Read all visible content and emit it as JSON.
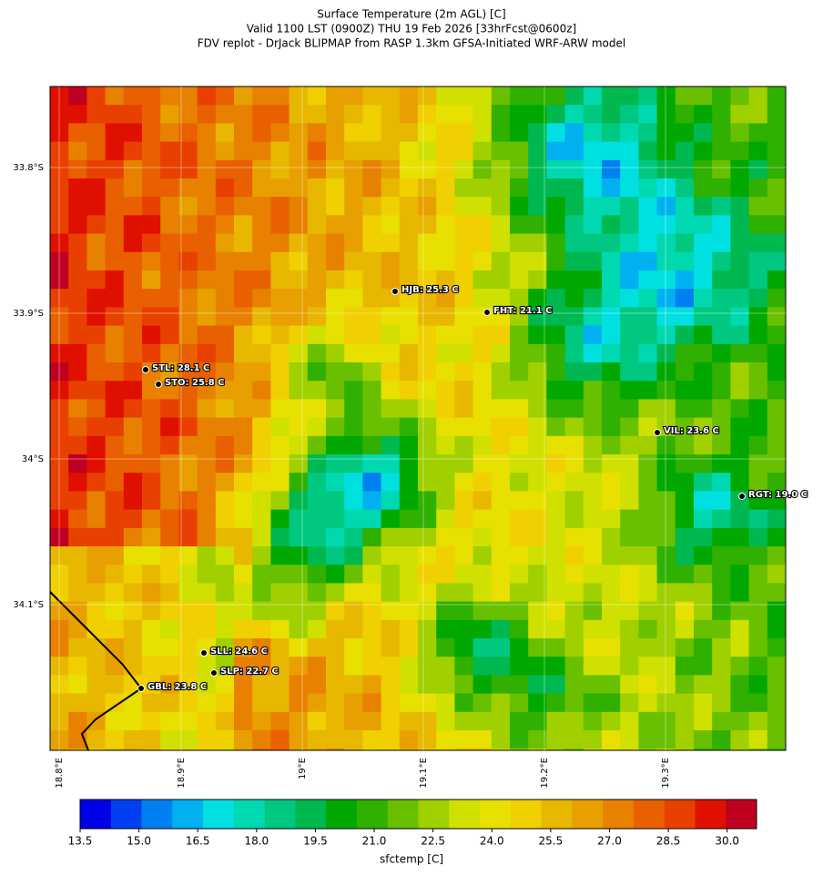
{
  "title": [
    "Surface Temperature (2m AGL) [C]",
    "Valid 1100 LST (0900Z) THU 19 Feb 2026 [33hrFcst@0600z]",
    "FDV replot - DrJack BLIPMAP from RASP 1.3km GFSA-Initiated WRF-ARW model"
  ],
  "lat_labels": [
    "33.8°S",
    "33.9°S",
    "34°S",
    "34.1°S"
  ],
  "lon_labels": [
    "18.8°E",
    "18.9°E",
    "19°E",
    "19.1°E",
    "19.2°E",
    "19.3°E"
  ],
  "stations": [
    "HJB: 25.3 C",
    "FHT: 21.1 C",
    "STL: 28.1 C",
    "STO: 25.8 C",
    "VIL: 23.6 C",
    "RGT: 19.0 C",
    "SLL: 24.6 C",
    "SLP: 22.7 C",
    "GBL: 23.8 C"
  ],
  "colorbar": {
    "label": "sfctemp [C]",
    "lim": [
      13.5,
      30.75
    ],
    "ticks": [
      13.5,
      {
        "value": 15,
        "label": "15.0"
      },
      16.5,
      {
        "value": 18,
        "label": "18.0"
      },
      19.5,
      {
        "value": 21,
        "label": "21.0"
      },
      22.5,
      {
        "value": 24,
        "label": "24.0"
      },
      25.5,
      {
        "value": 27,
        "label": "27.0"
      },
      28.5,
      {
        "value": 30,
        "label": "30.0"
      }
    ],
    "colors": [
      "#0000e6",
      "#0040f0",
      "#0080f0",
      "#00b0f0",
      "#00e0e0",
      "#00d8b0",
      "#00c880",
      "#00b850",
      "#00a800",
      "#30b000",
      "#68c000",
      "#a0d000",
      "#d0e000",
      "#e8e000",
      "#f0d000",
      "#e8b800",
      "#e8a000",
      "#e88000",
      "#e86000",
      "#e84000",
      "#e01000",
      "#c00020"
    ]
  }
}
